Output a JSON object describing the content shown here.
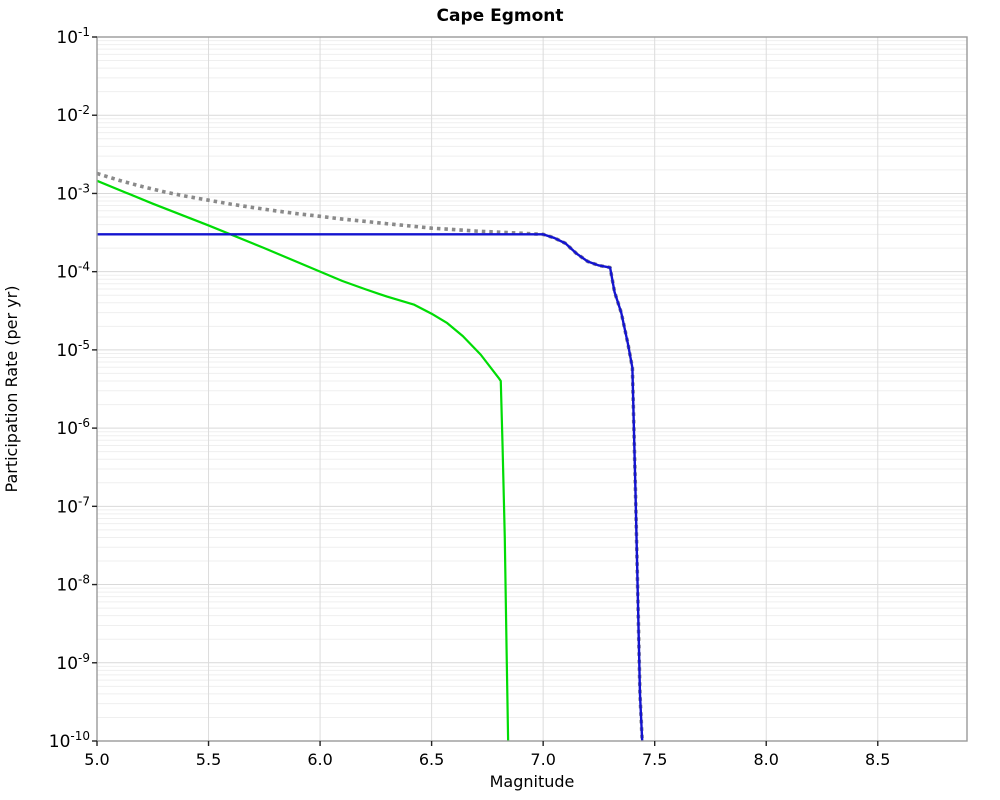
{
  "chart_data": {
    "type": "line",
    "title": "Cape Egmont",
    "xlabel": "Magnitude",
    "ylabel": "Participation Rate (per yr)",
    "x_range": [
      5.0,
      8.9
    ],
    "y_log_range": [
      -10,
      -1
    ],
    "x_tick_values": [
      5.0,
      5.5,
      6.0,
      6.5,
      7.0,
      7.5,
      8.0,
      8.5
    ],
    "x_tick_labels": [
      "5.0",
      "5.5",
      "6.0",
      "6.5",
      "7.0",
      "7.5",
      "8.0",
      "8.5"
    ],
    "y_tick_exponents": [
      -1,
      -2,
      -3,
      -4,
      -5,
      -6,
      -7,
      -8,
      -9,
      -10
    ],
    "grid": {
      "show_major": true,
      "show_minor": true,
      "major_color": "#d9d9d9",
      "minor_color": "#efefef",
      "vertical_color": "#dcdcdc"
    },
    "legend_position": "none",
    "colors": {
      "spine": "#9a9a9a",
      "tick": "#222222",
      "dotted_gray": "#8a8a8a",
      "green": "#00dc05",
      "blue": "#1414cf"
    },
    "series": [
      {
        "name": "mean-dotted",
        "color_key": "dotted_gray",
        "style": "dotted",
        "width": 3.6,
        "points": [
          [
            5.0,
            0.0018
          ],
          [
            5.1,
            0.00147
          ],
          [
            5.2,
            0.00123
          ],
          [
            5.3,
            0.00105
          ],
          [
            5.4,
            0.00092
          ],
          [
            5.5,
            0.00082
          ],
          [
            5.6,
            0.00073
          ],
          [
            5.7,
            0.00066
          ],
          [
            5.8,
            0.0006
          ],
          [
            5.9,
            0.00055
          ],
          [
            6.0,
            0.00051
          ],
          [
            6.1,
            0.00047
          ],
          [
            6.2,
            0.00044
          ],
          [
            6.3,
            0.00041
          ],
          [
            6.4,
            0.000385
          ],
          [
            6.5,
            0.00036
          ],
          [
            6.6,
            0.000345
          ],
          [
            6.7,
            0.00033
          ],
          [
            6.8,
            0.00032
          ],
          [
            6.9,
            0.00031
          ],
          [
            7.0,
            0.0003
          ],
          [
            7.05,
            0.00027
          ],
          [
            7.1,
            0.00023
          ],
          [
            7.15,
            0.00017
          ],
          [
            7.2,
            0.000135
          ],
          [
            7.25,
            0.00012
          ],
          [
            7.3,
            0.000113
          ],
          [
            7.32,
            5.5e-05
          ],
          [
            7.35,
            3e-05
          ],
          [
            7.38,
            1.2e-05
          ],
          [
            7.4,
            5.9e-06
          ],
          [
            7.414,
            1.5e-07
          ],
          [
            7.424,
            8e-09
          ],
          [
            7.434,
            4e-10
          ],
          [
            7.444,
            1e-10
          ]
        ]
      },
      {
        "name": "green-curve",
        "color_key": "green",
        "style": "solid",
        "width": 2.2,
        "points": [
          [
            5.0,
            0.00145
          ],
          [
            5.25,
            0.00074
          ],
          [
            5.5,
            0.00039
          ],
          [
            5.75,
            0.0002
          ],
          [
            6.0,
            0.0001
          ],
          [
            6.1,
            7.6e-05
          ],
          [
            6.2,
            6e-05
          ],
          [
            6.3,
            4.8e-05
          ],
          [
            6.42,
            3.8e-05
          ],
          [
            6.5,
            2.9e-05
          ],
          [
            6.57,
            2.2e-05
          ],
          [
            6.64,
            1.5e-05
          ],
          [
            6.72,
            8.7e-06
          ],
          [
            6.8,
            4.4e-06
          ],
          [
            6.81,
            4e-06
          ],
          [
            6.818,
            6e-07
          ],
          [
            6.828,
            4e-08
          ],
          [
            6.836,
            1.5e-09
          ],
          [
            6.843,
            1e-10
          ]
        ]
      },
      {
        "name": "blue-curve",
        "color_key": "blue",
        "style": "solid",
        "width": 2.4,
        "points": [
          [
            5.0,
            0.0003
          ],
          [
            7.0,
            0.0003
          ],
          [
            7.05,
            0.00027
          ],
          [
            7.1,
            0.00023
          ],
          [
            7.15,
            0.00017
          ],
          [
            7.2,
            0.000135
          ],
          [
            7.25,
            0.00012
          ],
          [
            7.3,
            0.000113
          ],
          [
            7.32,
            5.5e-05
          ],
          [
            7.35,
            3e-05
          ],
          [
            7.38,
            1.2e-05
          ],
          [
            7.4,
            5.9e-06
          ],
          [
            7.414,
            1.5e-07
          ],
          [
            7.424,
            8e-09
          ],
          [
            7.434,
            4e-10
          ],
          [
            7.444,
            1e-10
          ]
        ]
      }
    ]
  }
}
